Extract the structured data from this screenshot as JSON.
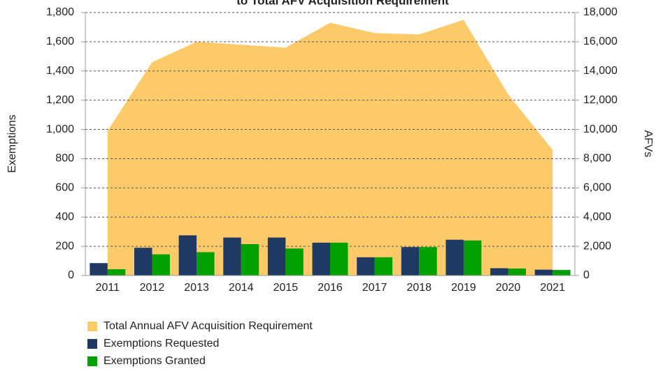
{
  "chart_data": {
    "type": "bar+area",
    "title": "to Total AFV Acquisition Requirement",
    "y_label": "Exemptions",
    "y2_label": "AFVs",
    "categories": [
      "2011",
      "2012",
      "2013",
      "2014",
      "2015",
      "2016",
      "2017",
      "2018",
      "2019",
      "2020",
      "2021"
    ],
    "series": [
      {
        "name": "Total Annual AFV Acquisition Requirement",
        "type": "area",
        "axis": "y2",
        "color": "#fdca6a",
        "values": [
          9900,
          14600,
          16000,
          15800,
          15600,
          17300,
          16600,
          16500,
          17500,
          12400,
          8600
        ]
      },
      {
        "name": "Exemptions Requested",
        "type": "bar",
        "color": "#1f3864",
        "values": [
          85,
          190,
          275,
          260,
          260,
          225,
          125,
          195,
          245,
          50,
          40
        ]
      },
      {
        "name": "Exemptions Granted",
        "type": "bar",
        "color": "#00a000",
        "values": [
          43,
          145,
          160,
          215,
          185,
          225,
          125,
          195,
          240,
          48,
          38
        ]
      }
    ],
    "ylim": [
      0,
      1800
    ],
    "yticks": [
      0,
      200,
      400,
      600,
      800,
      {
        "value": 1000,
        "label": "1,000"
      },
      {
        "value": 1200,
        "label": "1,200"
      },
      {
        "value": 1400,
        "label": "1,400"
      },
      {
        "value": 1600,
        "label": "1,600"
      },
      {
        "value": 1800,
        "label": "1,800"
      }
    ],
    "y2lim": [
      0,
      18000
    ],
    "y2ticks": [
      0,
      {
        "value": 2000,
        "label": "2,000"
      },
      {
        "value": 4000,
        "label": "4,000"
      },
      {
        "value": 6000,
        "label": "6,000"
      },
      {
        "value": 8000,
        "label": "8,000"
      },
      {
        "value": 10000,
        "label": "10,000"
      },
      {
        "value": 12000,
        "label": "12,000"
      },
      {
        "value": 14000,
        "label": "14,000"
      },
      {
        "value": 16000,
        "label": "16,000"
      },
      {
        "value": 18000,
        "label": "18,000"
      }
    ],
    "grid": true,
    "legend": "bottom"
  }
}
